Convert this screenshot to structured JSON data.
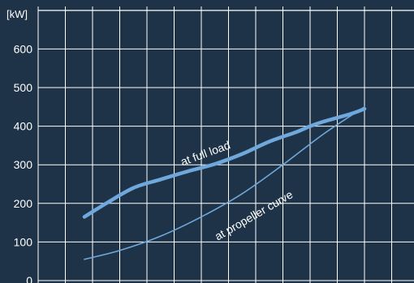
{
  "chart_data": {
    "type": "line",
    "ylabel": "[kW]",
    "ylim": [
      0,
      700
    ],
    "yticks": [
      0,
      100,
      200,
      300,
      400,
      500,
      600
    ],
    "xlim": [
      0,
      13
    ],
    "x_grid_lines": 13,
    "grid": true,
    "series": [
      {
        "name": "at full load",
        "color": "#6fa8dc",
        "x": [
          1.7,
          2.5,
          3.5,
          4.5,
          5.5,
          6.5,
          7.5,
          8.5,
          9.5,
          10.0,
          10.5,
          11.5,
          12.0
        ],
        "y": [
          165,
          200,
          240,
          262,
          283,
          302,
          328,
          360,
          385,
          400,
          412,
          432,
          445
        ]
      },
      {
        "name": "at propeller curve",
        "color": "#6fa8dc",
        "x": [
          1.7,
          3.0,
          4.5,
          6.0,
          7.5,
          9.0,
          10.5,
          12.0
        ],
        "y": [
          55,
          78,
          115,
          165,
          225,
          300,
          380,
          450
        ]
      }
    ],
    "annotations": [
      {
        "text": "at full load",
        "x": 6.2,
        "y": 320,
        "rotate": -20
      },
      {
        "text": "at propeller curve",
        "x": 8.0,
        "y": 160,
        "rotate": -30
      }
    ],
    "colors": {
      "background": "#1e3347",
      "grid": "#ffffff",
      "line": "#6fa8dc"
    }
  }
}
